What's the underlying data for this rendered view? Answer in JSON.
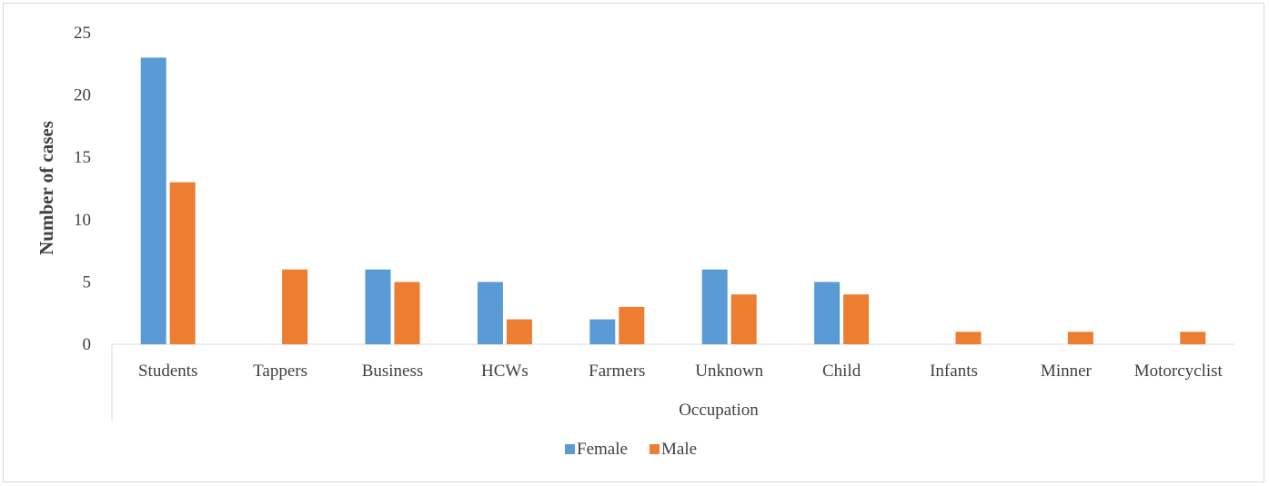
{
  "chart_data": {
    "type": "bar",
    "title": "",
    "xlabel": "Occupation",
    "ylabel": "Number of cases",
    "ylim": [
      0,
      25
    ],
    "yticks": [
      0,
      5,
      10,
      15,
      20,
      25
    ],
    "grid": false,
    "legend_position": "bottom",
    "categories": [
      "Students",
      "Tappers",
      "Business",
      "HCWs",
      "Farmers",
      "Unknown",
      "Child",
      "Infants",
      "Minner",
      "Motorcyclist"
    ],
    "series": [
      {
        "name": "Female",
        "color": "#5b9bd5",
        "values": [
          23,
          0,
          6,
          5,
          2,
          6,
          5,
          0,
          0,
          0
        ]
      },
      {
        "name": "Male",
        "color": "#ed7d31",
        "values": [
          13,
          6,
          5,
          2,
          3,
          4,
          4,
          1,
          1,
          1
        ]
      }
    ]
  }
}
